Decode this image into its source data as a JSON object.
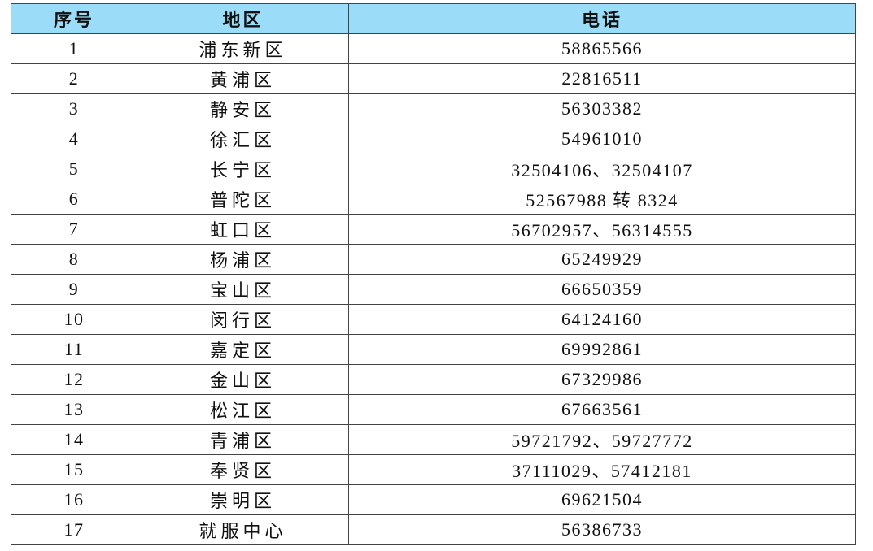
{
  "header": {
    "index": "序号",
    "region": "地区",
    "phone": "电话"
  },
  "header_color": "#9bdcf8",
  "rows": [
    {
      "index": "1",
      "region": "浦东新区",
      "phone": "58865566"
    },
    {
      "index": "2",
      "region": "黄浦区",
      "phone": "22816511"
    },
    {
      "index": "3",
      "region": "静安区",
      "phone": "56303382"
    },
    {
      "index": "4",
      "region": "徐汇区",
      "phone": "54961010"
    },
    {
      "index": "5",
      "region": "长宁区",
      "phone": "32504106、32504107"
    },
    {
      "index": "6",
      "region": "普陀区",
      "phone": "52567988 转 8324"
    },
    {
      "index": "7",
      "region": "虹口区",
      "phone": "56702957、56314555"
    },
    {
      "index": "8",
      "region": "杨浦区",
      "phone": "65249929"
    },
    {
      "index": "9",
      "region": "宝山区",
      "phone": "66650359"
    },
    {
      "index": "10",
      "region": "闵行区",
      "phone": "64124160"
    },
    {
      "index": "11",
      "region": "嘉定区",
      "phone": "69992861"
    },
    {
      "index": "12",
      "region": "金山区",
      "phone": "67329986"
    },
    {
      "index": "13",
      "region": "松江区",
      "phone": "67663561"
    },
    {
      "index": "14",
      "region": "青浦区",
      "phone": "59721792、59727772"
    },
    {
      "index": "15",
      "region": "奉贤区",
      "phone": "37111029、57412181"
    },
    {
      "index": "16",
      "region": "崇明区",
      "phone": "69621504"
    },
    {
      "index": "17",
      "region": "就服中心",
      "phone": "56386733"
    }
  ]
}
